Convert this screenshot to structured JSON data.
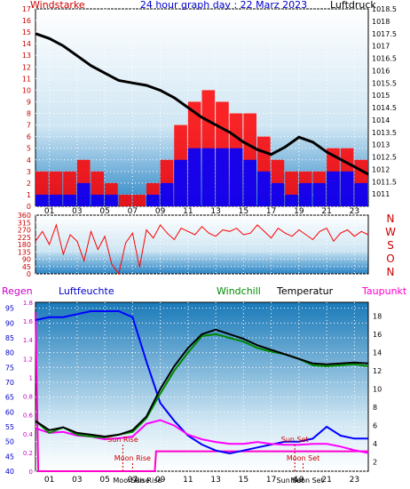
{
  "chart_data": [
    {
      "type": "line",
      "title": "24 hour graph day : 22 Marz 2023",
      "left_axis_label": "Windstarke",
      "right_axis_label": "Luftdruck",
      "left_range": [
        0,
        17
      ],
      "left_ticks": [
        "0",
        "1",
        "2",
        "3",
        "4",
        "5",
        "6",
        "7",
        "8",
        "9",
        "10",
        "11",
        "12",
        "13",
        "14",
        "15",
        "16",
        "17"
      ],
      "right_range": [
        1010.5,
        1018.5
      ],
      "right_ticks": [
        "1011",
        "1011.5",
        "1012",
        "1012.5",
        "1013",
        "1013.5",
        "1014",
        "1014.5",
        "1015",
        "1015.5",
        "1016",
        "1016.5",
        "1017",
        "1017.5",
        "1018",
        "1018.5"
      ],
      "x_ticks": [
        "01",
        "03",
        "05",
        "07",
        "09",
        "11",
        "13",
        "15",
        "17",
        "19",
        "21",
        "23"
      ],
      "x_range": [
        0,
        24
      ],
      "pressure": {
        "x": [
          0,
          1,
          2,
          3,
          4,
          5,
          6,
          7,
          8,
          9,
          10,
          11,
          12,
          13,
          14,
          15,
          16,
          17,
          18,
          19,
          20,
          21,
          22,
          23,
          24
        ],
        "y": [
          1017.5,
          1017.3,
          1017.0,
          1016.6,
          1016.2,
          1015.9,
          1015.6,
          1015.5,
          1015.4,
          1015.2,
          1014.9,
          1014.5,
          1014.1,
          1013.8,
          1013.5,
          1013.1,
          1012.8,
          1012.6,
          1012.9,
          1013.3,
          1013.1,
          1012.7,
          1012.4,
          1012.1,
          1011.8
        ]
      },
      "wind_gust": {
        "x": [
          0,
          1,
          2,
          3,
          4,
          5,
          6,
          7,
          8,
          9,
          10,
          11,
          12,
          13,
          14,
          15,
          16,
          17,
          18,
          19,
          20,
          21,
          22,
          23,
          24
        ],
        "y": [
          3,
          3,
          3,
          4,
          3,
          2,
          1,
          1,
          2,
          4,
          7,
          9,
          10,
          9,
          8,
          8,
          6,
          4,
          3,
          3,
          3,
          5,
          5,
          4,
          4
        ]
      },
      "wind_speed": {
        "x": [
          0,
          1,
          2,
          3,
          4,
          5,
          6,
          7,
          8,
          9,
          10,
          11,
          12,
          13,
          14,
          15,
          16,
          17,
          18,
          19,
          20,
          21,
          22,
          23,
          24
        ],
        "y": [
          1,
          1,
          1,
          2,
          1,
          1,
          0,
          0,
          1,
          2,
          4,
          5,
          5,
          5,
          5,
          4,
          3,
          2,
          1,
          2,
          2,
          3,
          3,
          2,
          2
        ]
      }
    },
    {
      "type": "scatter",
      "right_letters": [
        "N",
        "W",
        "S",
        "O",
        "N"
      ],
      "left_range": [
        0,
        360
      ],
      "left_ticks": [
        "0",
        "45",
        "90",
        "135",
        "180",
        "225",
        "270",
        "315",
        "360"
      ],
      "x_range": [
        0,
        24
      ],
      "direction": {
        "x": [
          0,
          0.5,
          1,
          1.5,
          2,
          2.5,
          3,
          3.5,
          4,
          4.5,
          5,
          5.5,
          6,
          6.5,
          7,
          7.5,
          8,
          8.5,
          9,
          9.5,
          10,
          10.5,
          11,
          11.5,
          12,
          12.5,
          13,
          13.5,
          14,
          14.5,
          15,
          15.5,
          16,
          16.5,
          17,
          17.5,
          18,
          18.5,
          19,
          19.5,
          20,
          20.5,
          21,
          21.5,
          22,
          22.5,
          23,
          23.5,
          24
        ],
        "y": [
          200,
          260,
          180,
          300,
          120,
          240,
          200,
          80,
          260,
          150,
          230,
          60,
          0,
          190,
          250,
          40,
          270,
          220,
          300,
          250,
          210,
          280,
          260,
          240,
          290,
          250,
          230,
          270,
          260,
          280,
          240,
          250,
          300,
          260,
          220,
          280,
          250,
          230,
          270,
          240,
          210,
          260,
          280,
          200,
          250,
          270,
          230,
          260,
          240
        ]
      }
    },
    {
      "type": "line",
      "regen_label": "Regen",
      "luftfeuchte_label": "Luftfeuchte",
      "windchill_label": "Windchill",
      "temperatur_label": "Temperatur",
      "taupunkt_label": "Taupunkt",
      "humidity_range": [
        40,
        97
      ],
      "humidity_ticks": [
        "40",
        "45",
        "50",
        "55",
        "60",
        "65",
        "70",
        "75",
        "80",
        "85",
        "90",
        "95"
      ],
      "rain_range": [
        0,
        0.85
      ],
      "rain_ticks": [
        "0",
        "0.1",
        "0.2",
        "0.3",
        "0.4",
        "0.5",
        "0.6",
        "0.7",
        "0.8",
        "0.9",
        "1",
        "1.1",
        "1.2",
        "1.3",
        "1.4",
        "1.5",
        "1.6",
        "1.7",
        "1.8"
      ],
      "temp_range": [
        1,
        19.5
      ],
      "temp_ticks": [
        "2",
        "4",
        "6",
        "8",
        "10",
        "12",
        "14",
        "16",
        "18"
      ],
      "x_ticks": [
        "01",
        "03",
        "05",
        "07",
        "09",
        "11",
        "13",
        "15",
        "17",
        "19",
        "21",
        "23"
      ],
      "x_range": [
        0,
        24
      ],
      "humidity": {
        "x": [
          0,
          1,
          2,
          3,
          4,
          5,
          6,
          7,
          8,
          9,
          10,
          11,
          12,
          13,
          14,
          15,
          16,
          17,
          18,
          19,
          20,
          21,
          22,
          23,
          24
        ],
        "y": [
          91,
          92,
          92,
          93,
          94,
          94,
          94,
          92,
          77,
          63,
          57,
          52,
          49,
          47,
          46,
          47,
          48,
          49,
          50,
          50,
          51,
          55,
          52,
          51,
          51
        ]
      },
      "temperature": {
        "x": [
          0,
          1,
          2,
          3,
          4,
          5,
          6,
          7,
          8,
          9,
          10,
          11,
          12,
          13,
          14,
          15,
          16,
          17,
          18,
          19,
          20,
          21,
          22,
          23,
          24
        ],
        "y": [
          6.5,
          5.5,
          5.8,
          5.2,
          5.0,
          4.8,
          5.0,
          5.5,
          7.0,
          10.0,
          12.5,
          14.5,
          16.0,
          16.5,
          16.0,
          15.5,
          14.8,
          14.3,
          13.8,
          13.3,
          12.8,
          12.7,
          12.8,
          12.9,
          12.8
        ]
      },
      "windchill": {
        "x": [
          0,
          1,
          2,
          3,
          4,
          5,
          6,
          7,
          8,
          9,
          10,
          11,
          12,
          13,
          14,
          15,
          16,
          17,
          18,
          19,
          20,
          21,
          22,
          23,
          24
        ],
        "y": [
          6.5,
          5.2,
          5.8,
          5.0,
          4.8,
          4.7,
          5.0,
          5.3,
          6.8,
          9.5,
          12.0,
          14.0,
          15.8,
          16.0,
          15.6,
          15.2,
          14.5,
          14.1,
          13.8,
          13.3,
          12.6,
          12.5,
          12.6,
          12.7,
          12.5
        ]
      },
      "dewpoint": {
        "x": [
          0,
          1,
          2,
          3,
          4,
          5,
          6,
          7,
          8,
          9,
          10,
          11,
          12,
          13,
          14,
          15,
          16,
          17,
          18,
          19,
          20,
          21,
          22,
          23,
          24
        ],
        "y": [
          5.7,
          5.2,
          5.3,
          4.9,
          4.8,
          4.5,
          4.6,
          4.8,
          6.2,
          6.6,
          6.0,
          5.0,
          4.5,
          4.2,
          4.0,
          4.0,
          4.2,
          4.0,
          3.9,
          3.9,
          4.0,
          4.0,
          3.7,
          3.3,
          3.0
        ]
      },
      "rain": {
        "x": [
          0,
          0.2,
          8.6,
          8.7,
          24
        ],
        "y": [
          0.8,
          0,
          0,
          0.1,
          0.1
        ]
      },
      "annotations": [
        {
          "label": "Sun Rise",
          "x": 6.3
        },
        {
          "label": "Moon Rise",
          "x": 7.0
        },
        {
          "label": "Sun Set",
          "x": 18.7
        },
        {
          "label": "Moon Set",
          "x": 19.3
        }
      ],
      "bottom_labels": [
        "Moon Rise",
        "Sun Rise",
        "Sun Set",
        "Moon Set"
      ]
    }
  ]
}
